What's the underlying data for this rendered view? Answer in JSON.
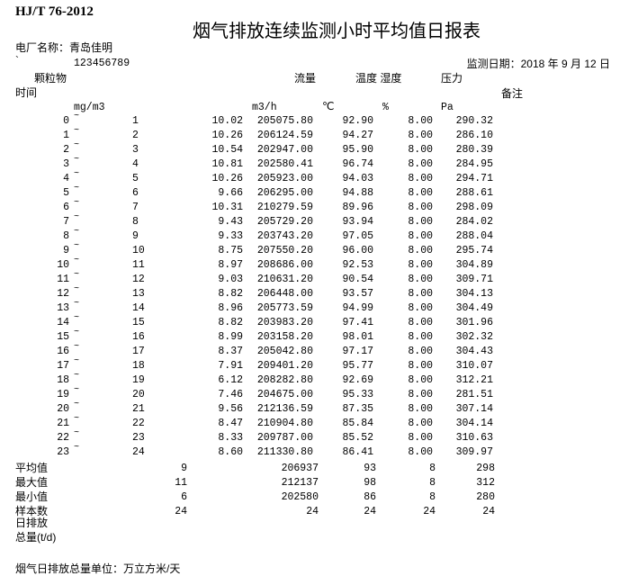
{
  "header": {
    "standard": "HJ/T 76-2012",
    "title": "烟气排放连续监测小时平均值日报表",
    "plant_label": "电厂名称：青岛佳明",
    "backtick": "`",
    "code": "123456789",
    "date_label": "监测日期：2018 年 9 月 12 日"
  },
  "columns": {
    "particle": "颗粒物",
    "flow": "流量",
    "temp_humidity": "温度 湿度",
    "pressure": "压力",
    "time": "时间",
    "remark": "备注",
    "unit_particle": "mg/m3",
    "unit_flow": "m3/h",
    "unit_temp": "℃",
    "unit_humidity": "%",
    "unit_pressure": "Pa"
  },
  "separator": "~",
  "rows": [
    [
      "0",
      "1",
      "10.02",
      "205075.80",
      "92.90",
      "8.00",
      "290.32"
    ],
    [
      "1",
      "2",
      "10.26",
      "206124.59",
      "94.27",
      "8.00",
      "286.10"
    ],
    [
      "2",
      "3",
      "10.54",
      "202947.00",
      "95.90",
      "8.00",
      "280.39"
    ],
    [
      "3",
      "4",
      "10.81",
      "202580.41",
      "96.74",
      "8.00",
      "284.95"
    ],
    [
      "4",
      "5",
      "10.26",
      "205923.00",
      "94.03",
      "8.00",
      "294.71"
    ],
    [
      "5",
      "6",
      "9.66",
      "206295.00",
      "94.88",
      "8.00",
      "288.61"
    ],
    [
      "6",
      "7",
      "10.31",
      "210279.59",
      "89.96",
      "8.00",
      "298.09"
    ],
    [
      "7",
      "8",
      "9.43",
      "205729.20",
      "93.94",
      "8.00",
      "284.02"
    ],
    [
      "8",
      "9",
      "9.33",
      "203743.20",
      "97.05",
      "8.00",
      "288.04"
    ],
    [
      "9",
      "10",
      "8.75",
      "207550.20",
      "96.00",
      "8.00",
      "295.74"
    ],
    [
      "10",
      "11",
      "8.97",
      "208686.00",
      "92.53",
      "8.00",
      "304.89"
    ],
    [
      "11",
      "12",
      "9.03",
      "210631.20",
      "90.54",
      "8.00",
      "309.71"
    ],
    [
      "12",
      "13",
      "8.82",
      "206448.00",
      "93.57",
      "8.00",
      "304.13"
    ],
    [
      "13",
      "14",
      "8.96",
      "205773.59",
      "94.99",
      "8.00",
      "304.49"
    ],
    [
      "14",
      "15",
      "8.82",
      "203983.20",
      "97.41",
      "8.00",
      "301.96"
    ],
    [
      "15",
      "16",
      "8.99",
      "203158.20",
      "98.01",
      "8.00",
      "302.32"
    ],
    [
      "16",
      "17",
      "8.37",
      "205042.80",
      "97.17",
      "8.00",
      "304.43"
    ],
    [
      "17",
      "18",
      "7.91",
      "209401.20",
      "95.77",
      "8.00",
      "310.07"
    ],
    [
      "18",
      "19",
      "6.12",
      "208282.80",
      "92.69",
      "8.00",
      "312.21"
    ],
    [
      "19",
      "20",
      "7.46",
      "204675.00",
      "95.33",
      "8.00",
      "281.51"
    ],
    [
      "20",
      "21",
      "9.56",
      "212136.59",
      "87.35",
      "8.00",
      "307.14"
    ],
    [
      "21",
      "22",
      "8.47",
      "210904.80",
      "85.84",
      "8.00",
      "304.14"
    ],
    [
      "22",
      "23",
      "8.33",
      "209787.00",
      "85.52",
      "8.00",
      "310.63"
    ],
    [
      "23",
      "24",
      "8.60",
      "211330.80",
      "86.41",
      "8.00",
      "309.97"
    ]
  ],
  "summary": [
    {
      "label": "平均值",
      "values": [
        "9",
        "206937",
        "93",
        "8",
        "298"
      ]
    },
    {
      "label": "最大值",
      "values": [
        "11",
        "212137",
        "98",
        "8",
        "312"
      ]
    },
    {
      "label": "最小值",
      "values": [
        "6",
        "202580",
        "86",
        "8",
        "280"
      ]
    },
    {
      "label": "样本数",
      "values": [
        "24",
        "24",
        "24",
        "24",
        "24"
      ]
    }
  ],
  "daily_label_1": "日排放",
  "daily_label_2": "总量(t/d)",
  "footer": "烟气日排放总量单位：万立方米/天"
}
